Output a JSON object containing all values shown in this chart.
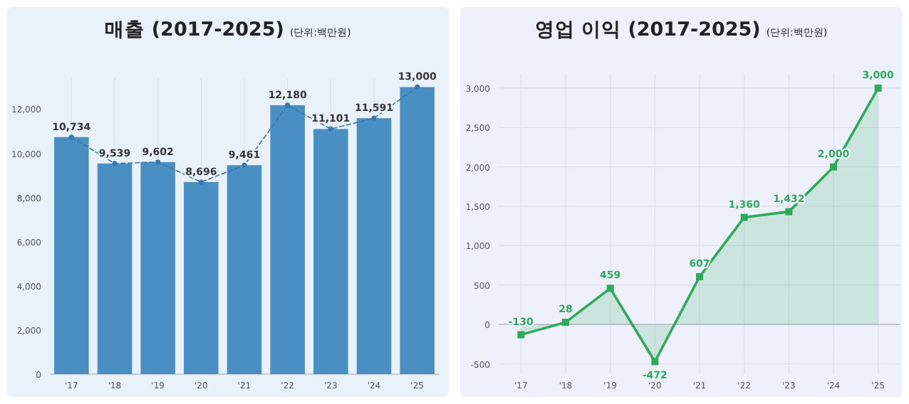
{
  "chart_data": [
    {
      "type": "bar",
      "title": "매출 (2017-2025)",
      "subtitle": "(단위:백만원)",
      "categories": [
        "'17",
        "'18",
        "'19",
        "'20",
        "'21",
        "'22",
        "'23",
        "'24",
        "'25"
      ],
      "series": [
        {
          "color": "#4a8fc4",
          "values": [
            10734,
            9539,
            9602,
            8696,
            9461,
            12180,
            11101,
            11591,
            13000
          ],
          "value_labels": [
            "10,734",
            "9,539",
            "9,602",
            "8,696",
            "9,461",
            "12,180",
            "11,101",
            "11,591",
            "13,000"
          ]
        },
        {
          "type": "line",
          "color": "#3a78a8",
          "line_style": "dashed",
          "marker": "circle",
          "values": [
            10734,
            9539,
            9602,
            8696,
            9461,
            12180,
            11101,
            11591,
            13000
          ]
        }
      ],
      "ylim": [
        0,
        13400
      ],
      "yticks": [
        0,
        {
          "value": 2000,
          "label": "2,000"
        },
        {
          "value": 4000,
          "label": "4,000"
        },
        {
          "value": 6000,
          "label": "6,000"
        },
        {
          "value": 8000,
          "label": "8,000"
        },
        {
          "value": 10000,
          "label": "10,000"
        },
        {
          "value": 12000,
          "label": "12,000"
        }
      ],
      "grid": "x"
    },
    {
      "type": "area",
      "title": "영업 이익 (2017-2025)",
      "subtitle": "(단위:백만원)",
      "categories": [
        "'17",
        "'18",
        "'19",
        "'20",
        "'21",
        "'22",
        "'23",
        "'24",
        "'25"
      ],
      "series": [
        {
          "color": "#2eaa5c",
          "marker": "square",
          "values": [
            -130,
            28,
            459,
            -472,
            607,
            1360,
            1432,
            2000,
            3000
          ],
          "value_labels": [
            "-130",
            "28",
            "459",
            "-472",
            "607",
            "1,360",
            "1,432",
            "2,000",
            "3,000"
          ]
        }
      ],
      "ylim": [
        -630,
        3180
      ],
      "yticks": [
        -500,
        0,
        500,
        {
          "value": 1000,
          "label": "1,000"
        },
        {
          "value": 1500,
          "label": "1,500"
        },
        {
          "value": 2000,
          "label": "2,000"
        },
        {
          "value": 2500,
          "label": "2,500"
        },
        {
          "value": 3000,
          "label": "3,000"
        }
      ],
      "grid": true
    }
  ]
}
